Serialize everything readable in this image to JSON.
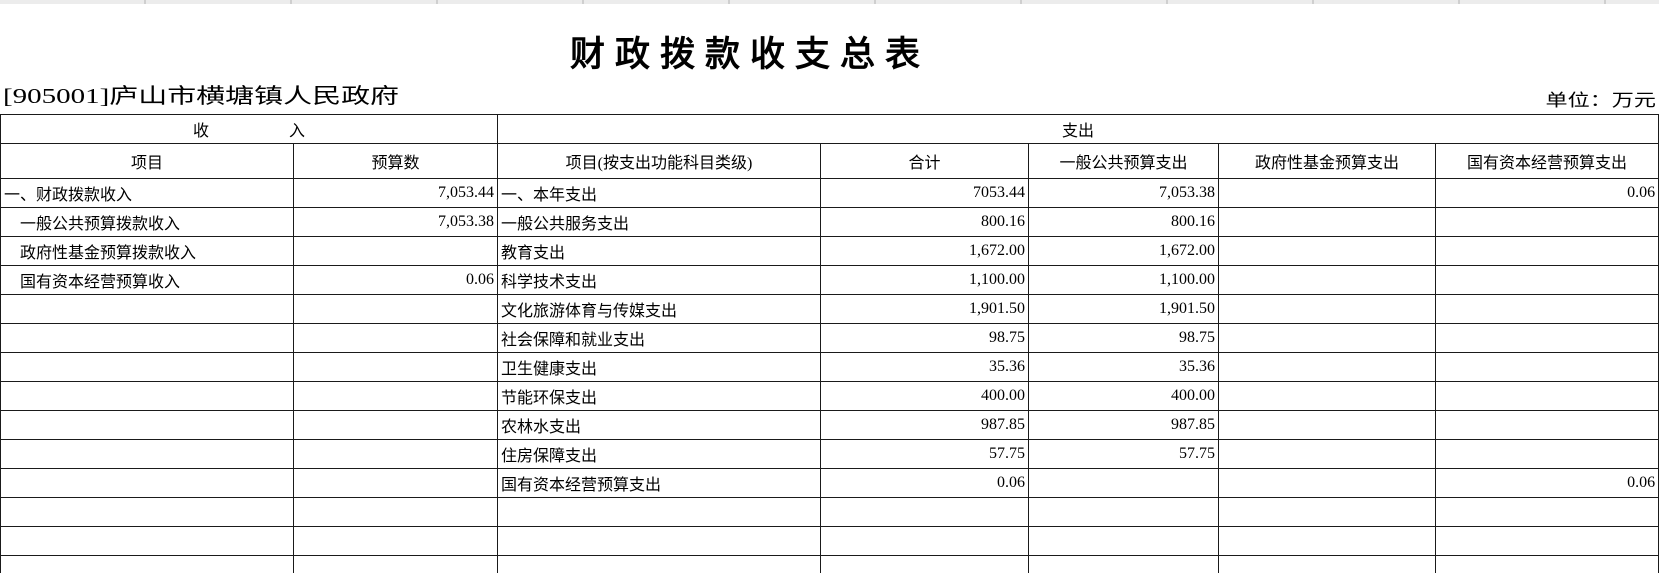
{
  "page": {
    "title": "财政拨款收支总表",
    "org_code_name": "[905001]庐山市横塘镇人民政府",
    "unit_label": "单位：万元"
  },
  "table": {
    "group_income": "收　　　　　入",
    "group_expense": "支出",
    "columns": [
      {
        "key": "income-item",
        "label": "项目",
        "align": "left"
      },
      {
        "key": "income-budget",
        "label": "预算数",
        "align": "right"
      },
      {
        "key": "expense-item",
        "label": "项目(按支出功能科目类级)",
        "align": "left"
      },
      {
        "key": "total",
        "label": "合计",
        "align": "right"
      },
      {
        "key": "general-public-budget",
        "label": "一般公共预算支出",
        "align": "right"
      },
      {
        "key": "government-fund-budget",
        "label": "政府性基金预算支出",
        "align": "right"
      },
      {
        "key": "state-capital-budget",
        "label": "国有资本经营预算支出",
        "align": "right"
      }
    ],
    "rows": [
      [
        "一、财政拨款收入",
        "7,053.44",
        "一、本年支出",
        "7053.44",
        "7,053.38",
        "",
        "0.06"
      ],
      [
        "　一般公共预算拨款收入",
        "7,053.38",
        "一般公共服务支出",
        "800.16",
        "800.16",
        "",
        ""
      ],
      [
        "　政府性基金预算拨款收入",
        "",
        "教育支出",
        "1,672.00",
        "1,672.00",
        "",
        ""
      ],
      [
        "　国有资本经营预算收入",
        "0.06",
        "科学技术支出",
        "1,100.00",
        "1,100.00",
        "",
        ""
      ],
      [
        "",
        "",
        "文化旅游体育与传媒支出",
        "1,901.50",
        "1,901.50",
        "",
        ""
      ],
      [
        "",
        "",
        "社会保障和就业支出",
        "98.75",
        "98.75",
        "",
        ""
      ],
      [
        "",
        "",
        "卫生健康支出",
        "35.36",
        "35.36",
        "",
        ""
      ],
      [
        "",
        "",
        "节能环保支出",
        "400.00",
        "400.00",
        "",
        ""
      ],
      [
        "",
        "",
        "农林水支出",
        "987.85",
        "987.85",
        "",
        ""
      ],
      [
        "",
        "",
        "住房保障支出",
        "57.75",
        "57.75",
        "",
        ""
      ],
      [
        "",
        "",
        "国有资本经营预算支出",
        "0.06",
        "",
        "",
        "0.06"
      ],
      [
        "",
        "",
        "",
        "",
        "",
        "",
        ""
      ],
      [
        "",
        "",
        "",
        "",
        "",
        "",
        ""
      ],
      [
        "",
        "",
        "",
        "",
        "",
        "",
        ""
      ]
    ]
  }
}
